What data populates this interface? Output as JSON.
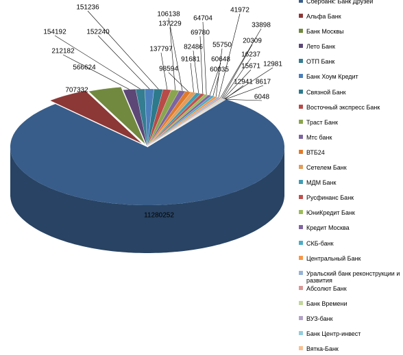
{
  "chart_data": {
    "type": "pie",
    "categories": [
      "Сбербанк: Банк Друзей",
      "Альфа Банк",
      "Банк Москвы",
      "Лето Банк",
      "ОТП Банк",
      "Банк Хоум Кредит",
      "Связной Банк",
      "Восточный экспресс Банк",
      "Траст Банк",
      "Мтс банк",
      "ВТБ24",
      "Сетелем Банк",
      "МДМ Банк",
      "Русфинанс Банк",
      "ЮниКредит Банк",
      "Кредит Москва",
      "СКБ-банк",
      "Центральный Банк",
      "Уральский банк реконструкции и развития",
      "Абсолют Банк",
      "Банк Времени",
      "ВУЗ-банк",
      "Банк Центр-инвест",
      "Вятка-Банк",
      null,
      null,
      null
    ],
    "values": [
      11280252,
      707332,
      566624,
      212182,
      154192,
      152240,
      151236,
      137797,
      137229,
      106138,
      98594,
      91681,
      82486,
      69780,
      64704,
      60648,
      60035,
      55750,
      41972,
      33898,
      20309,
      16237,
      15671,
      12981,
      12941,
      8617,
      6048
    ],
    "colors": [
      "#385d8a",
      "#8c3836",
      "#71893f",
      "#5c4776",
      "#357d91",
      "#4a7ebb",
      "#2c7a8c",
      "#b84a47",
      "#8aa54e",
      "#7c64a0",
      "#e07b2c",
      "#e39c5a",
      "#3f9cb4",
      "#c0504d",
      "#9bbb59",
      "#8064a2",
      "#4bacc6",
      "#f79646",
      "#95b3d7",
      "#d99694",
      "#c3d69b",
      "#b3a2c7",
      "#93cddd",
      "#fac090",
      "#a5a5a5",
      "#7f7f7f",
      "#bfbfbf"
    ],
    "legend": "right"
  }
}
